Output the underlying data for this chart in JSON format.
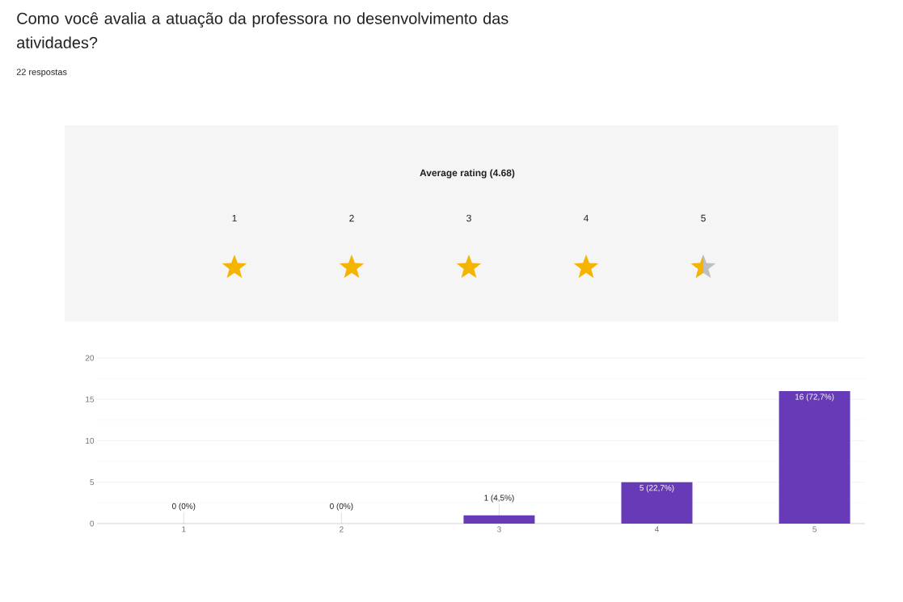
{
  "chart_data": {
    "type": "bar",
    "title": "Como você avalia a atuação da professora no desenvolvimento das atividades?",
    "subtitle": "22 respostas",
    "annotations": [
      "Average rating (4.68)"
    ],
    "categories": [
      "1",
      "2",
      "3",
      "4",
      "5"
    ],
    "values": [
      0,
      0,
      1,
      5,
      16
    ],
    "value_labels": [
      "0 (0%)",
      "0 (0%)",
      "1 (4,5%)",
      "5 (22,7%)",
      "16 (72,7%)"
    ],
    "color": "#673ab7",
    "ylim": [
      0,
      20
    ],
    "yticks": [
      0,
      5,
      10,
      15,
      20
    ],
    "grid": "y"
  }
}
